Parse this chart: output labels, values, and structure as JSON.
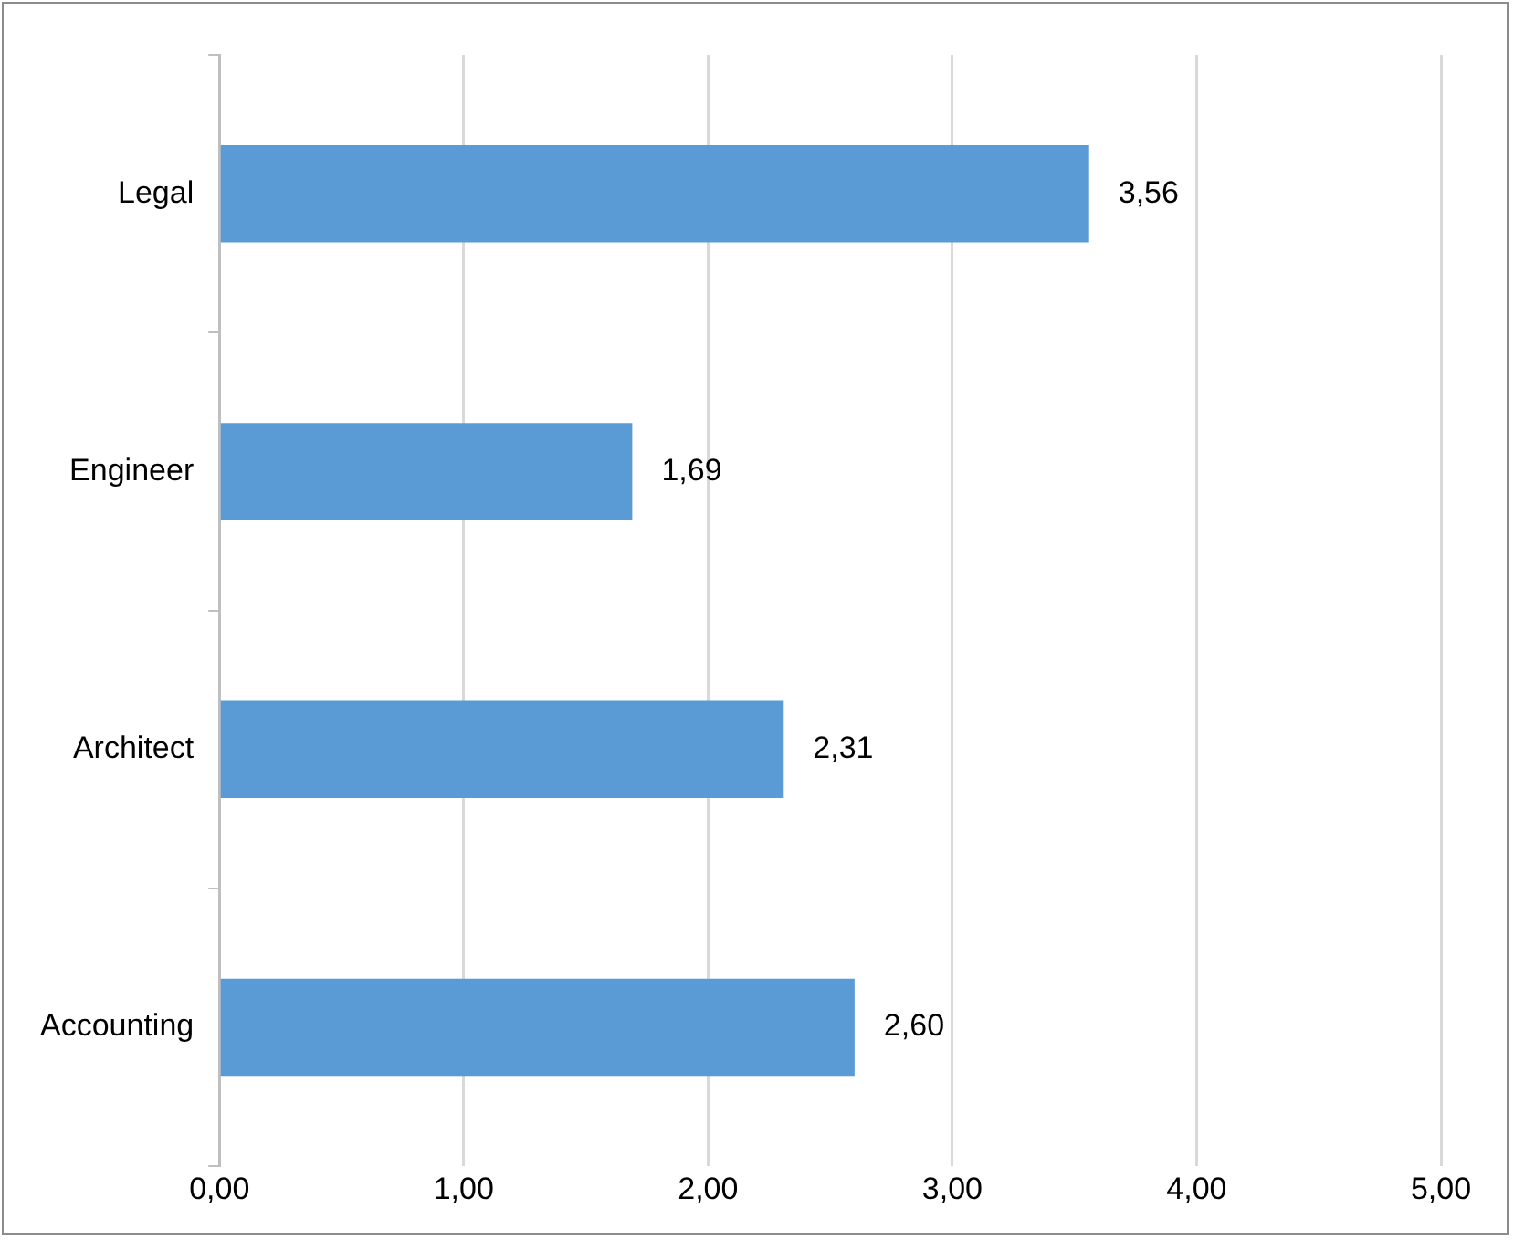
{
  "chart_data": {
    "type": "bar",
    "orientation": "horizontal",
    "categories": [
      "Legal",
      "Engineer",
      "Architect",
      "Accounting"
    ],
    "values": [
      3.56,
      1.69,
      2.31,
      2.6
    ],
    "value_labels": [
      "3,56",
      "1,69",
      "2,31",
      "2,60"
    ],
    "color": "#5b9bd5",
    "xlim": [
      0,
      5
    ],
    "xticks": [
      {
        "value": 0,
        "label": "0,00"
      },
      {
        "value": 1,
        "label": "1,00"
      },
      {
        "value": 2,
        "label": "2,00"
      },
      {
        "value": 3,
        "label": "3,00"
      },
      {
        "value": 4,
        "label": "4,00"
      },
      {
        "value": 5,
        "label": "5,00"
      }
    ],
    "grid": "x",
    "legend": false
  }
}
